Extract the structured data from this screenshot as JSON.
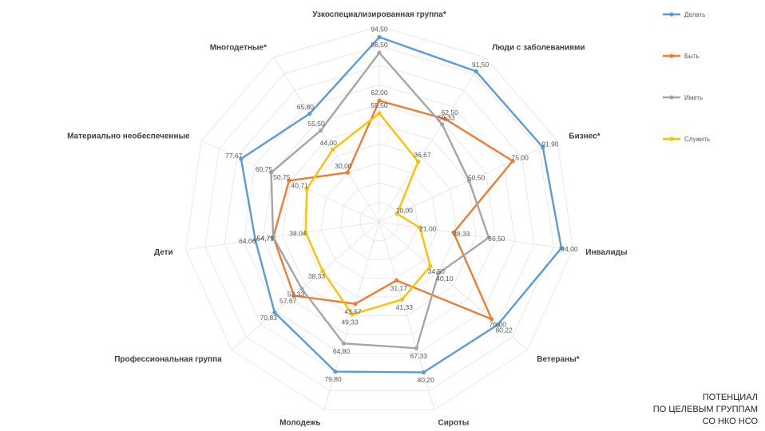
{
  "chart_data": {
    "type": "radar",
    "categories": [
      "Узкоспециализированная группа*",
      "Люди с заболеваниями",
      "Бизнес*",
      "Инвалиды",
      "Ветераны*",
      "Сироты",
      "Молодежь",
      "Профессиональная группа",
      "Дети",
      "Материально необеспеченные",
      "Многодетные*"
    ],
    "rlim": [
      0,
      100
    ],
    "grid": true,
    "legend_position": "right",
    "series": [
      {
        "name": "Делать",
        "color": "#5b9bd5",
        "values": [
          94.5,
          91.5,
          91.9,
          94.0,
          80.22,
          80.2,
          79.8,
          70.83,
          64.06,
          77.67,
          65.8
        ],
        "labels": [
          "94,50",
          "91,50",
          "91,90",
          "94,00",
          "80,22",
          "80,20",
          "79,80",
          "70,83",
          "64,06",
          "77,67",
          "65,80"
        ]
      },
      {
        "name": "Быть",
        "color": "#ed7d31",
        "values": [
          62.0,
          62.5,
          75.0,
          38.33,
          76.0,
          31.17,
          43.67,
          57.67,
          54.71,
          50.75,
          30.0
        ],
        "labels": [
          "62,00",
          "62,50",
          "75,00",
          "38,33",
          "76,00",
          "31,17",
          "43,67",
          "57,67",
          "54,71",
          "50,75",
          "30,00"
        ]
      },
      {
        "name": "Иметь",
        "color": "#a5a5a5",
        "values": [
          86.5,
          59.33,
          50.5,
          56.5,
          40.1,
          67.33,
          64.8,
          52.33,
          54.79,
          60.75,
          55.5
        ],
        "labels": [
          "86,50",
          "59,33",
          "50,50",
          "56,50",
          "40,10",
          "67,33",
          "64,80",
          "52,33",
          "54,79",
          "60,75",
          "55,50"
        ]
      },
      {
        "name": "Служить",
        "color": "#ffc000",
        "values": [
          55.5,
          36.67,
          10.0,
          21.0,
          34.5,
          41.33,
          49.33,
          38.33,
          38.04,
          40.71,
          44.0
        ],
        "labels": [
          "55,50",
          "36,67",
          "10,00",
          "21,00",
          "34,50",
          "41,33",
          "49,33",
          "38,33",
          "38,04",
          "40,71",
          "44,00"
        ]
      }
    ]
  },
  "footnote": {
    "line1": "ПОТЕНЦИАЛ",
    "line2": "ПО ЦЕЛЕВЫМ ГРУППАМ",
    "line3": "СО НКО НСО"
  }
}
